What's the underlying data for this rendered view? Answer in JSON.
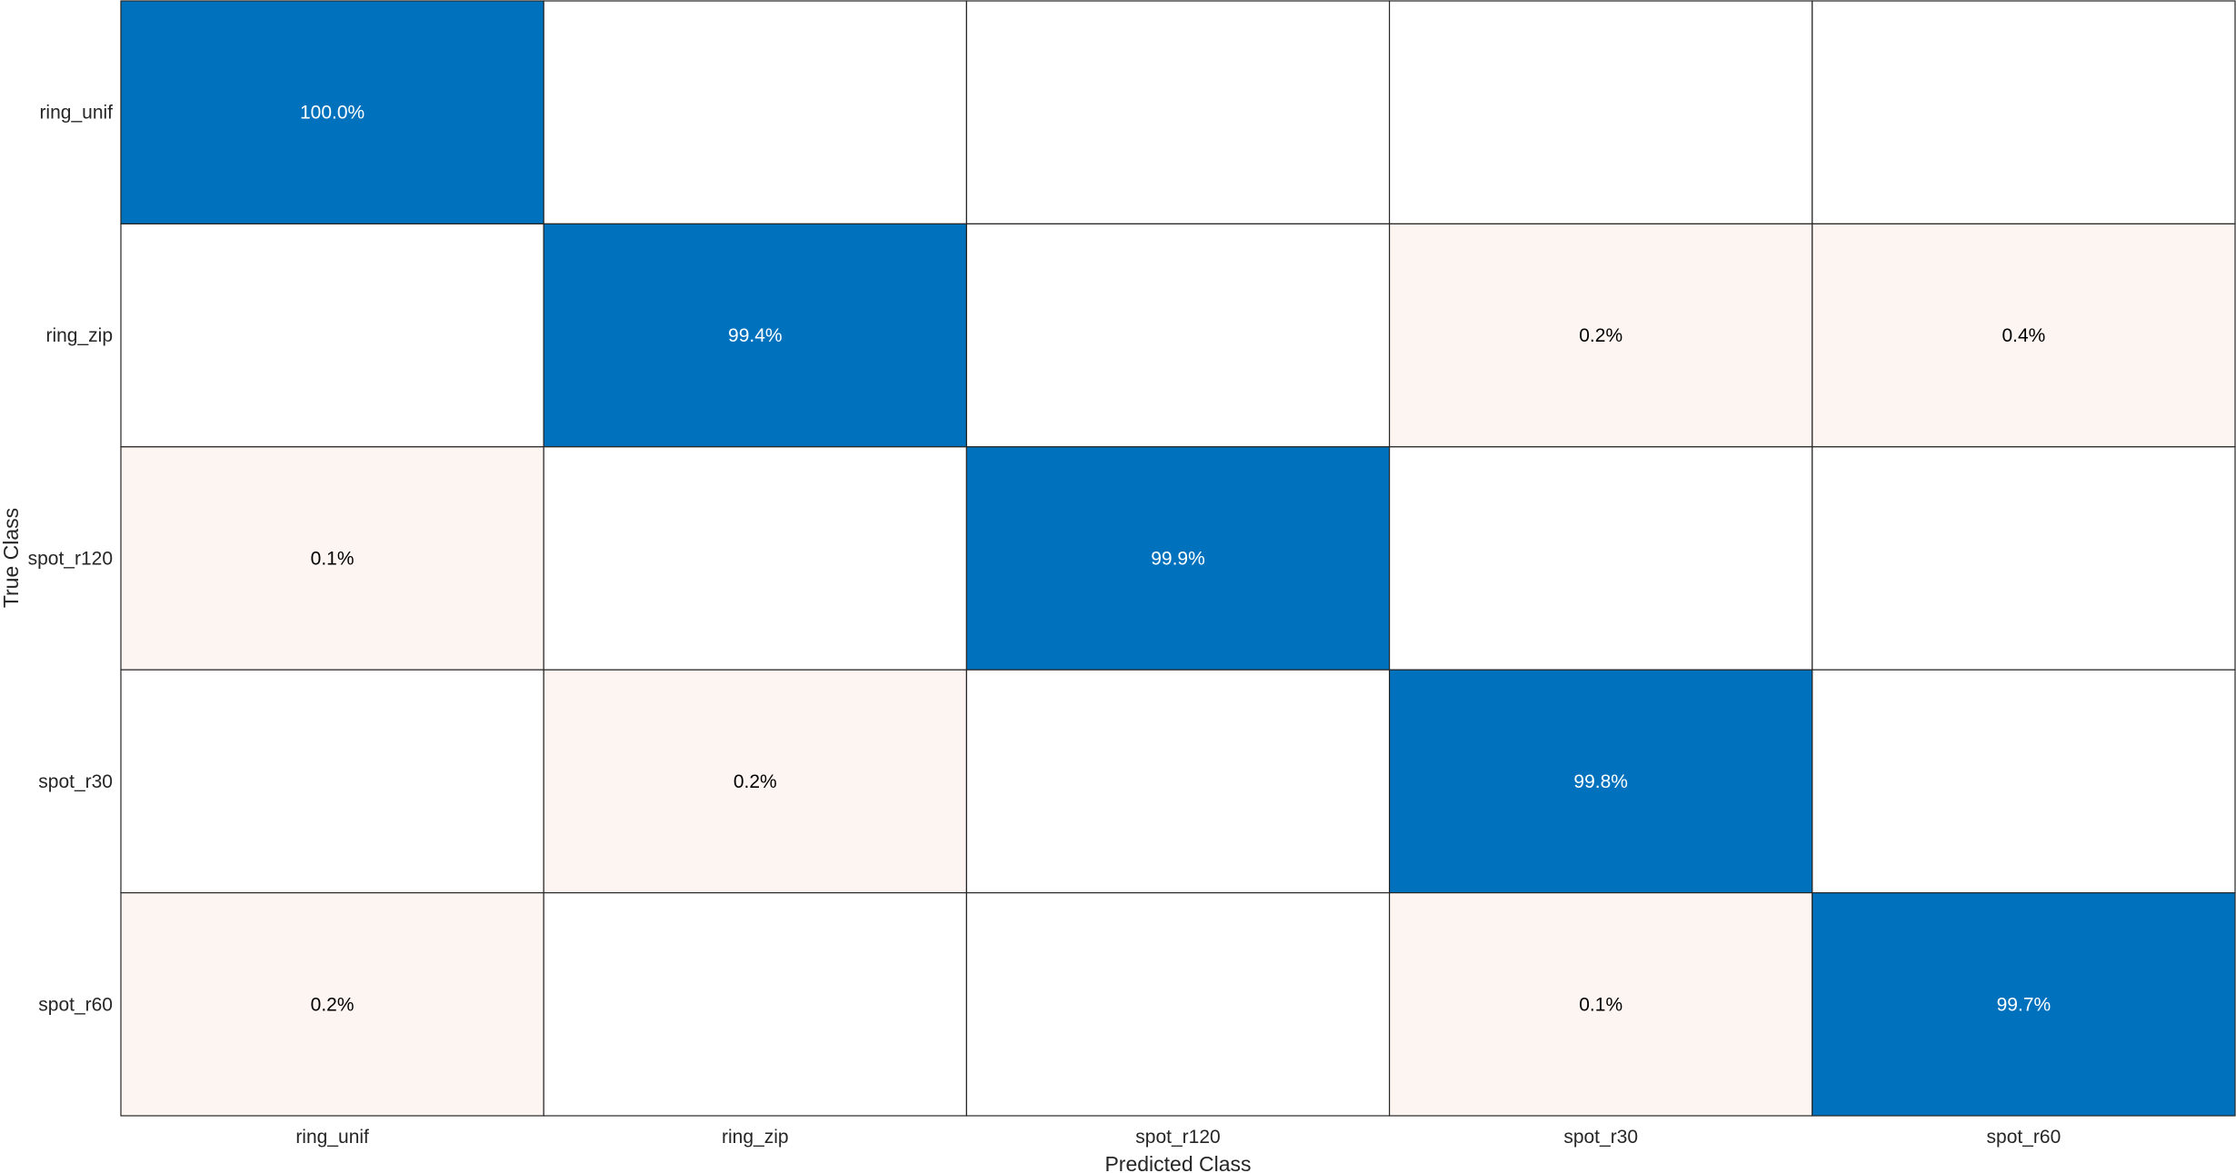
{
  "chart_data": {
    "type": "heatmap",
    "title": "",
    "xlabel": "Predicted Class",
    "ylabel": "True Class",
    "x_categories": [
      "ring_unif",
      "ring_zip",
      "spot_r120",
      "spot_r30",
      "spot_r60"
    ],
    "y_categories": [
      "ring_unif",
      "ring_zip",
      "spot_r120",
      "spot_r30",
      "spot_r60"
    ],
    "values": [
      [
        100.0,
        null,
        null,
        null,
        null
      ],
      [
        null,
        99.4,
        null,
        0.2,
        0.4
      ],
      [
        0.1,
        null,
        99.9,
        null,
        null
      ],
      [
        null,
        0.2,
        null,
        99.8,
        null
      ],
      [
        0.2,
        null,
        null,
        0.1,
        99.7
      ]
    ],
    "value_format": "percent",
    "grid": true,
    "legend": "none"
  },
  "colors": {
    "diagonal": "#0072bd",
    "off_diagonal": "#fdf5f2",
    "empty": "#ffffff",
    "border": "#262626",
    "diagonal_text": "#ffffff",
    "off_diagonal_text": "#000000"
  }
}
